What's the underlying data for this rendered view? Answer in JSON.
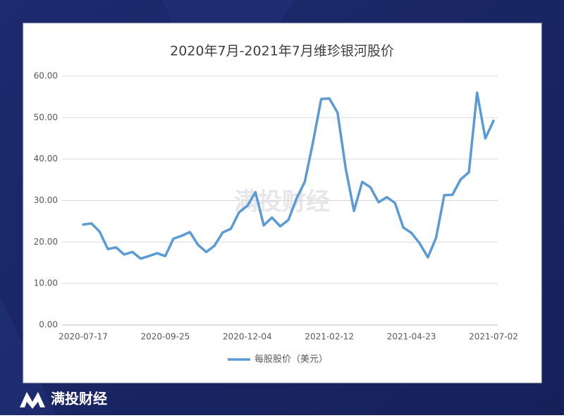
{
  "brand": "满投财经",
  "chart_data": {
    "type": "line",
    "title": "2020年7月-2021年7月维珍银河股价",
    "watermark": "满投财经",
    "categories": [
      "2020-07-17",
      null,
      null,
      null,
      null,
      null,
      null,
      null,
      null,
      null,
      "2020-09-25",
      null,
      null,
      null,
      null,
      null,
      null,
      null,
      null,
      null,
      "2020-12-04",
      null,
      null,
      null,
      null,
      null,
      null,
      null,
      null,
      null,
      "2021-02-12",
      null,
      null,
      null,
      null,
      null,
      null,
      null,
      null,
      null,
      "2021-04-23",
      null,
      null,
      null,
      null,
      null,
      null,
      null,
      null,
      null,
      "2021-07-02"
    ],
    "series": [
      {
        "name": "每股股价（美元）",
        "color": "#5b9bd5",
        "values": [
          24.2,
          24.5,
          22.5,
          18.3,
          18.7,
          17.0,
          17.6,
          16.0,
          16.6,
          17.3,
          16.6,
          20.8,
          21.5,
          22.4,
          19.3,
          17.6,
          19.1,
          22.3,
          23.2,
          27.2,
          28.7,
          32.0,
          24.0,
          25.9,
          23.8,
          25.3,
          30.5,
          34.5,
          44.0,
          54.5,
          54.6,
          51.2,
          37.6,
          27.5,
          34.5,
          33.2,
          29.6,
          30.8,
          29.4,
          23.5,
          22.2,
          19.7,
          16.3,
          21.0,
          31.3,
          31.4,
          35.1,
          36.8,
          56.0,
          45.0,
          49.2
        ]
      }
    ],
    "ylim": [
      0,
      60
    ],
    "yticks": [
      {
        "value": 0,
        "label": "0.00"
      },
      {
        "value": 10,
        "label": "10.00"
      },
      {
        "value": 20,
        "label": "20.00"
      },
      {
        "value": 30,
        "label": "30.00"
      },
      {
        "value": 40,
        "label": "40.00"
      },
      {
        "value": 50,
        "label": "50.00"
      },
      {
        "value": 60,
        "label": "60.00"
      }
    ],
    "grid": true,
    "legend": "bottom"
  }
}
